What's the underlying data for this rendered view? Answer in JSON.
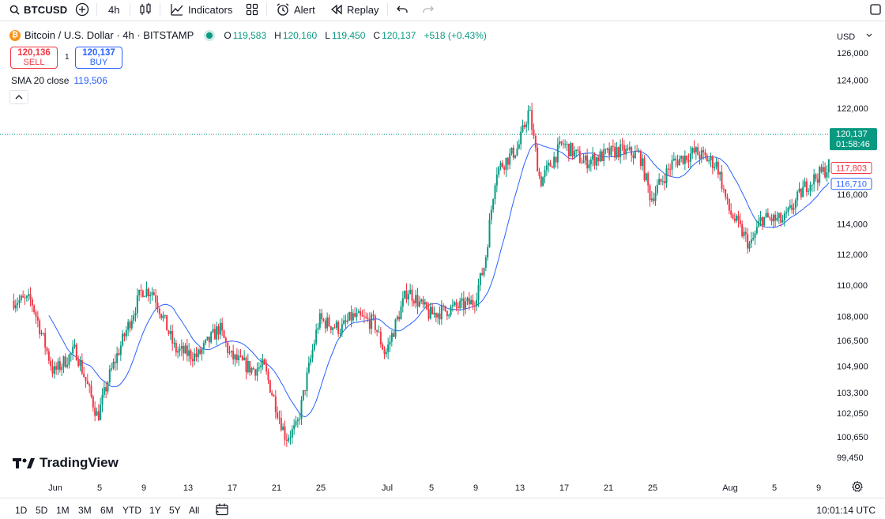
{
  "toolbar": {
    "symbol": "BTCUSD",
    "interval": "4h",
    "indicators_label": "Indicators",
    "alert_label": "Alert",
    "replay_label": "Replay"
  },
  "legend": {
    "coin_glyph": "₿",
    "title": "Bitcoin / U.S. Dollar · 4h · BITSTAMP",
    "open_key": "O",
    "open": "119,583",
    "high_key": "H",
    "high": "120,160",
    "low_key": "L",
    "low": "119,450",
    "close_key": "C",
    "close": "120,137",
    "change": "+518 (+0.43%)"
  },
  "trade": {
    "sell_price": "120,136",
    "sell_label": "SELL",
    "spread": "1",
    "buy_price": "120,137",
    "buy_label": "BUY"
  },
  "sma": {
    "label": "SMA 20 close",
    "value": "119,506"
  },
  "price_axis": {
    "currency": "USD",
    "ticks": [
      "126,000",
      "124,000",
      "122,000",
      "120,000",
      "118,000",
      "116,000",
      "114,000",
      "112,000",
      "110,000",
      "108,000",
      "106,500",
      "104,900",
      "103,300",
      "102,050",
      "100,650",
      "99,450"
    ]
  },
  "time_axis": {
    "ticks": [
      "Jun",
      "5",
      "9",
      "13",
      "17",
      "21",
      "25",
      "Jul",
      "5",
      "9",
      "13",
      "17",
      "21",
      "25",
      "",
      "Aug",
      "5",
      "9"
    ]
  },
  "price_labels": {
    "last_price": "120,137",
    "countdown": "01:58:46",
    "high_marker": "117,803",
    "low_marker": "116,710"
  },
  "watermark": "TradingView",
  "bottom": {
    "ranges": [
      "1D",
      "5D",
      "1M",
      "3M",
      "6M",
      "YTD",
      "1Y",
      "5Y",
      "All"
    ],
    "clock": "10:01:14 UTC"
  },
  "colors": {
    "up": "#089981",
    "down": "#f23645",
    "sma": "#2962ff"
  },
  "chart_data": {
    "type": "candlestick",
    "interval": "4h",
    "y_scale": "log",
    "ylim": [
      98800,
      127500
    ],
    "x_start": "2025-05-28",
    "x_end": "2025-08-11",
    "sma_period": 20,
    "anchors": [
      [
        "2025-05-30",
        109000
      ],
      [
        "2025-06-01",
        104500
      ],
      [
        "2025-06-03",
        105900
      ],
      [
        "2025-06-05",
        101800
      ],
      [
        "2025-06-06",
        104200
      ],
      [
        "2025-06-09",
        109700
      ],
      [
        "2025-06-10",
        109600
      ],
      [
        "2025-06-12",
        105900
      ],
      [
        "2025-06-14",
        105500
      ],
      [
        "2025-06-16",
        107300
      ],
      [
        "2025-06-17",
        105500
      ],
      [
        "2025-06-19",
        104700
      ],
      [
        "2025-06-20",
        104900
      ],
      [
        "2025-06-22",
        100600
      ],
      [
        "2025-06-23",
        101200
      ],
      [
        "2025-06-25",
        107800
      ],
      [
        "2025-06-27",
        107200
      ],
      [
        "2025-06-28",
        108000
      ],
      [
        "2025-06-30",
        107600
      ],
      [
        "2025-07-01",
        105600
      ],
      [
        "2025-07-03",
        109700
      ],
      [
        "2025-07-05",
        108100
      ],
      [
        "2025-07-07",
        108500
      ],
      [
        "2025-07-09",
        108900
      ],
      [
        "2025-07-10",
        111400
      ],
      [
        "2025-07-11",
        117600
      ],
      [
        "2025-07-13",
        119200
      ],
      [
        "2025-07-14",
        121900
      ],
      [
        "2025-07-15",
        116800
      ],
      [
        "2025-07-17",
        119500
      ],
      [
        "2025-07-19",
        118200
      ],
      [
        "2025-07-22",
        119000
      ],
      [
        "2025-07-24",
        118700
      ],
      [
        "2025-07-25",
        115700
      ],
      [
        "2025-07-27",
        118200
      ],
      [
        "2025-07-29",
        118900
      ],
      [
        "2025-07-31",
        118000
      ],
      [
        "2025-08-01",
        115000
      ],
      [
        "2025-08-03",
        112500
      ],
      [
        "2025-08-04",
        114400
      ],
      [
        "2025-08-06",
        114200
      ],
      [
        "2025-08-08",
        116600
      ],
      [
        "2025-08-10",
        117800
      ],
      [
        "2025-08-11",
        120137
      ]
    ]
  }
}
